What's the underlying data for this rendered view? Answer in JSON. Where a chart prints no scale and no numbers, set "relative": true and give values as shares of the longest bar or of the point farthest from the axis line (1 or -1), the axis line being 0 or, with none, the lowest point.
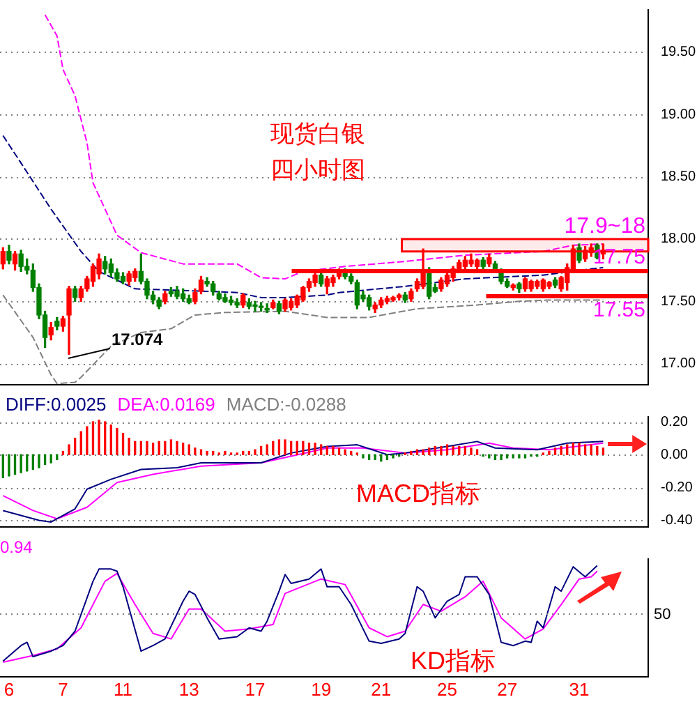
{
  "chart_data": [
    {
      "type": "candlestick",
      "categories": [
        null,
        "6",
        null,
        null,
        null,
        null,
        null,
        null,
        null,
        null,
        "7",
        null,
        null,
        null,
        null,
        null,
        null,
        null,
        null,
        null,
        "11",
        null,
        null,
        null,
        null,
        null,
        null,
        null,
        null,
        null,
        null,
        "13",
        null,
        null,
        null,
        null,
        null,
        null,
        null,
        null,
        null,
        null,
        "17",
        null,
        null,
        null,
        null,
        null,
        null,
        null,
        null,
        null,
        null,
        "19",
        null,
        null,
        null,
        null,
        null,
        null,
        null,
        null,
        null,
        "21",
        null,
        null,
        null,
        null,
        null,
        null,
        null,
        null,
        null,
        null,
        "25",
        null,
        null,
        null,
        null,
        null,
        null,
        null,
        null,
        null,
        "27",
        null,
        null,
        null,
        null,
        null,
        null,
        null,
        null,
        null,
        null,
        null,
        "31",
        null,
        null,
        null,
        null,
        null,
        null,
        null,
        null,
        null,
        null,
        null
      ],
      "ohlc": [
        [
          17.8,
          17.93,
          17.76,
          17.9
        ],
        [
          17.9,
          17.95,
          17.8,
          17.83
        ],
        [
          17.8,
          17.9,
          17.75,
          17.88
        ],
        [
          17.88,
          17.91,
          17.74,
          17.78
        ],
        [
          17.78,
          17.84,
          17.72,
          17.75
        ],
        [
          17.75,
          17.8,
          17.58,
          17.61
        ],
        [
          17.61,
          17.64,
          17.36,
          17.39
        ],
        [
          17.39,
          17.42,
          17.13,
          17.21
        ],
        [
          17.23,
          17.33,
          17.19,
          17.29
        ],
        [
          17.34,
          17.37,
          17.27,
          17.3
        ],
        [
          17.3,
          17.38,
          17.26,
          17.36
        ],
        [
          17.39,
          17.62,
          17.074,
          17.6
        ],
        [
          17.6,
          17.62,
          17.5,
          17.53
        ],
        [
          17.53,
          17.62,
          17.5,
          17.6
        ],
        [
          17.6,
          17.7,
          17.58,
          17.68
        ],
        [
          17.66,
          17.8,
          17.62,
          17.78
        ],
        [
          17.72,
          17.88,
          17.68,
          17.84
        ],
        [
          17.82,
          17.86,
          17.72,
          17.76
        ],
        [
          17.8,
          17.84,
          17.7,
          17.73
        ],
        [
          17.73,
          17.76,
          17.66,
          17.68
        ],
        [
          17.7,
          17.73,
          17.64,
          17.66
        ],
        [
          17.66,
          17.74,
          17.63,
          17.72
        ],
        [
          17.69,
          17.76,
          17.66,
          17.74
        ],
        [
          17.74,
          17.88,
          17.64,
          17.66
        ],
        [
          17.66,
          17.68,
          17.52,
          17.55
        ],
        [
          17.55,
          17.58,
          17.48,
          17.51
        ],
        [
          17.51,
          17.53,
          17.44,
          17.46
        ],
        [
          17.5,
          17.58,
          17.48,
          17.56
        ],
        [
          17.58,
          17.61,
          17.54,
          17.56
        ],
        [
          17.58,
          17.62,
          17.52,
          17.54
        ],
        [
          17.56,
          17.6,
          17.5,
          17.52
        ],
        [
          17.52,
          17.55,
          17.48,
          17.49
        ],
        [
          17.5,
          17.6,
          17.48,
          17.57
        ],
        [
          17.58,
          17.7,
          17.56,
          17.67
        ],
        [
          17.66,
          17.69,
          17.62,
          17.64
        ],
        [
          17.64,
          17.66,
          17.55,
          17.58
        ],
        [
          17.56,
          17.58,
          17.51,
          17.52
        ],
        [
          17.53,
          17.56,
          17.49,
          17.5
        ],
        [
          17.51,
          17.54,
          17.47,
          17.49
        ],
        [
          17.49,
          17.52,
          17.45,
          17.47
        ],
        [
          17.47,
          17.56,
          17.45,
          17.55
        ],
        [
          17.49,
          17.52,
          17.44,
          17.46
        ],
        [
          17.47,
          17.5,
          17.42,
          17.46
        ],
        [
          17.46,
          17.49,
          17.42,
          17.45
        ],
        [
          17.44,
          17.48,
          17.41,
          17.43
        ],
        [
          17.45,
          17.51,
          17.44,
          17.49
        ],
        [
          17.48,
          17.5,
          17.4,
          17.42
        ],
        [
          17.44,
          17.52,
          17.42,
          17.51
        ],
        [
          17.45,
          17.52,
          17.43,
          17.5
        ],
        [
          17.47,
          17.55,
          17.45,
          17.54
        ],
        [
          17.51,
          17.62,
          17.5,
          17.61
        ],
        [
          17.61,
          17.68,
          17.58,
          17.66
        ],
        [
          17.65,
          17.73,
          17.62,
          17.71
        ],
        [
          17.71,
          17.73,
          17.62,
          17.64
        ],
        [
          17.62,
          17.7,
          17.56,
          17.68
        ],
        [
          17.65,
          17.71,
          17.62,
          17.69
        ],
        [
          17.7,
          17.76,
          17.68,
          17.74
        ],
        [
          17.74,
          17.76,
          17.68,
          17.7
        ],
        [
          17.7,
          17.72,
          17.64,
          17.66
        ],
        [
          17.65,
          17.67,
          17.44,
          17.47
        ],
        [
          17.55,
          17.58,
          17.5,
          17.52
        ],
        [
          17.53,
          17.55,
          17.43,
          17.46
        ],
        [
          17.44,
          17.49,
          17.41,
          17.47
        ],
        [
          17.47,
          17.53,
          17.45,
          17.51
        ],
        [
          17.5,
          17.54,
          17.48,
          17.52
        ],
        [
          17.51,
          17.54,
          17.5,
          17.53
        ],
        [
          17.53,
          17.56,
          17.51,
          17.55
        ],
        [
          17.55,
          17.57,
          17.49,
          17.51
        ],
        [
          17.52,
          17.6,
          17.5,
          17.58
        ],
        [
          17.6,
          17.68,
          17.58,
          17.66
        ],
        [
          17.62,
          17.92,
          17.6,
          17.75
        ],
        [
          17.75,
          17.77,
          17.52,
          17.54
        ],
        [
          17.61,
          17.64,
          17.57,
          17.58
        ],
        [
          17.6,
          17.69,
          17.58,
          17.67
        ],
        [
          17.64,
          17.73,
          17.62,
          17.71
        ],
        [
          17.69,
          17.78,
          17.66,
          17.76
        ],
        [
          17.76,
          17.83,
          17.74,
          17.81
        ],
        [
          17.78,
          17.86,
          17.76,
          17.83
        ],
        [
          17.8,
          17.88,
          17.78,
          17.83
        ],
        [
          17.78,
          17.84,
          17.76,
          17.83
        ],
        [
          17.83,
          17.85,
          17.76,
          17.78
        ],
        [
          17.8,
          17.88,
          17.78,
          17.85
        ],
        [
          17.8,
          17.82,
          17.73,
          17.75
        ],
        [
          17.75,
          17.76,
          17.64,
          17.66
        ],
        [
          17.66,
          17.68,
          17.61,
          17.62
        ],
        [
          17.61,
          17.64,
          17.59,
          17.63
        ],
        [
          17.64,
          17.65,
          17.57,
          17.6
        ],
        [
          17.6,
          17.69,
          17.58,
          17.68
        ],
        [
          17.6,
          17.67,
          17.58,
          17.66
        ],
        [
          17.62,
          17.67,
          17.6,
          17.66
        ],
        [
          17.6,
          17.68,
          17.58,
          17.67
        ],
        [
          17.62,
          17.66,
          17.6,
          17.65
        ],
        [
          17.67,
          17.69,
          17.61,
          17.63
        ],
        [
          17.6,
          17.7,
          17.58,
          17.69
        ],
        [
          17.65,
          17.8,
          17.59,
          17.77
        ],
        [
          17.76,
          17.95,
          17.74,
          17.92
        ],
        [
          17.93,
          17.96,
          17.81,
          17.83
        ],
        [
          17.84,
          17.94,
          17.82,
          17.91
        ],
        [
          17.89,
          17.96,
          17.86,
          17.93
        ],
        [
          17.95,
          17.96,
          17.84,
          17.85
        ],
        [
          17.88,
          17.96,
          17.84,
          17.91
        ],
        null,
        null,
        null,
        null,
        null,
        null,
        null
      ],
      "series": [
        {
          "type": "line",
          "color": "#ff00ff",
          "values": [
            null,
            null,
            null,
            null,
            null,
            null,
            null,
            19.8,
            null,
            19.63,
            19.36,
            null,
            19.15,
            null,
            18.77,
            18.45,
            null,
            18.24,
            null,
            18.03,
            null,
            null,
            null,
            17.89,
            null,
            null,
            null,
            null,
            null,
            null,
            17.8,
            null,
            null,
            null,
            null,
            null,
            null,
            null,
            null,
            17.8,
            null,
            null,
            null,
            17.69,
            null,
            null,
            null,
            17.68,
            null,
            null,
            17.74,
            null,
            null,
            null,
            null,
            null,
            null,
            17.78,
            null,
            null,
            null,
            null,
            null,
            null,
            null,
            null,
            null,
            17.82,
            null,
            null,
            null,
            null,
            null,
            null,
            null,
            null,
            null,
            17.87,
            null,
            null,
            null,
            null,
            null,
            null,
            null,
            null,
            null,
            null,
            null,
            null,
            17.9,
            null,
            null,
            null,
            null,
            17.95,
            null,
            null,
            null,
            null,
            17.96,
            null,
            null,
            null,
            null,
            null,
            null,
            null
          ]
        },
        {
          "type": "line",
          "color": "#000080",
          "values": [
            18.83,
            null,
            null,
            18.61,
            null,
            null,
            null,
            null,
            18.24,
            null,
            null,
            null,
            null,
            17.9,
            null,
            null,
            17.74,
            null,
            null,
            null,
            null,
            null,
            17.6,
            null,
            null,
            null,
            null,
            null,
            null,
            null,
            null,
            null,
            null,
            null,
            17.58,
            null,
            null,
            null,
            null,
            17.57,
            null,
            null,
            null,
            17.53,
            null,
            null,
            null,
            17.53,
            null,
            null,
            null,
            null,
            null,
            null,
            17.55,
            null,
            17.57,
            null,
            null,
            null,
            null,
            null,
            null,
            null,
            null,
            null,
            null,
            17.62,
            null,
            null,
            null,
            null,
            null,
            null,
            null,
            null,
            null,
            17.68,
            null,
            null,
            null,
            null,
            null,
            null,
            null,
            null,
            null,
            null,
            null,
            null,
            17.71,
            null,
            null,
            null,
            null,
            null,
            null,
            null,
            17.76,
            null,
            17.77,
            null,
            null,
            null,
            null,
            null,
            null,
            null
          ]
        },
        {
          "type": "line",
          "color": "#808080",
          "values": [
            17.55,
            null,
            null,
            null,
            null,
            17.21,
            null,
            null,
            16.91,
            16.84,
            null,
            null,
            16.85,
            16.89,
            null,
            null,
            null,
            null,
            17.14,
            null,
            null,
            null,
            null,
            17.25,
            null,
            null,
            null,
            null,
            17.28,
            null,
            null,
            null,
            17.39,
            null,
            null,
            null,
            null,
            17.41,
            null,
            null,
            null,
            null,
            null,
            null,
            null,
            null,
            null,
            17.42,
            null,
            null,
            null,
            null,
            null,
            null,
            17.37,
            null,
            null,
            null,
            null,
            null,
            null,
            17.37,
            null,
            null,
            null,
            null,
            null,
            null,
            null,
            17.44,
            null,
            null,
            null,
            null,
            null,
            null,
            null,
            null,
            null,
            17.47,
            null,
            null,
            null,
            null,
            null,
            null,
            17.5,
            null,
            null,
            null,
            null,
            17.51,
            null,
            null,
            null,
            null,
            null,
            null,
            null,
            null,
            17.51,
            null,
            null,
            null,
            null,
            null,
            null,
            null
          ]
        }
      ],
      "line_style": "dashed",
      "ylim": [
        16.83,
        19.84
      ],
      "yticks": [
        {
          "value": 17,
          "label": "17.00"
        },
        {
          "value": 17.5,
          "label": "17.50"
        },
        {
          "value": 18,
          "label": "18.00"
        },
        {
          "value": 18.5,
          "label": "18.50"
        },
        {
          "value": 19,
          "label": "19.00"
        },
        {
          "value": 19.5,
          "label": "19.50"
        }
      ],
      "grid": "y",
      "tick_labels": "y",
      "legend": false,
      "ref_lines": [
        {
          "axis": "y",
          "value": 17.75,
          "label": "17.75",
          "color": "#ff0000"
        },
        {
          "axis": "y",
          "value": 17.55,
          "label": "17.55",
          "color": "#ff0000"
        }
      ],
      "bands": [
        {
          "axis": "y",
          "from": 17.9,
          "to": 18,
          "label": "17.9~18",
          "color": "#ff0000"
        }
      ],
      "annotations": [
        "现货白银",
        "四小时图",
        "17.074"
      ]
    },
    {
      "type": "bar",
      "categories": [
        null,
        "6",
        null,
        null,
        null,
        null,
        null,
        null,
        null,
        null,
        "7",
        null,
        null,
        null,
        null,
        null,
        null,
        null,
        null,
        null,
        "11",
        null,
        null,
        null,
        null,
        null,
        null,
        null,
        null,
        null,
        null,
        "13",
        null,
        null,
        null,
        null,
        null,
        null,
        null,
        null,
        null,
        null,
        "17",
        null,
        null,
        null,
        null,
        null,
        null,
        null,
        null,
        null,
        null,
        "19",
        null,
        null,
        null,
        null,
        null,
        null,
        null,
        null,
        null,
        "21",
        null,
        null,
        null,
        null,
        null,
        null,
        null,
        null,
        null,
        null,
        "25",
        null,
        null,
        null,
        null,
        null,
        null,
        null,
        null,
        null,
        "27",
        null,
        null,
        null,
        null,
        null,
        null,
        null,
        null,
        null,
        null,
        null,
        "31",
        null,
        null,
        null,
        null,
        null,
        null,
        null,
        null,
        null,
        null,
        null
      ],
      "series": [
        {
          "type": "bar",
          "colors": [
            "#008000",
            "#008000",
            "#008000",
            "#008000",
            "#008000",
            "#008000",
            "#008000",
            "#008000",
            "#008000",
            "#008000",
            "#ff0000",
            "#ff0000",
            "#ff0000",
            "#ff0000",
            "#ff0000",
            "#ff0000",
            "#ff0000",
            "#ff0000",
            "#ff0000",
            "#ff0000",
            "#ff0000",
            "#ff0000",
            "#ff0000",
            "#ff0000",
            "#ff0000",
            "#ff0000",
            "#ff0000",
            "#ff0000",
            "#ff0000",
            "#ff0000",
            "#ff0000",
            "#ff0000",
            "#ff0000",
            "#ff0000",
            "#ff0000",
            "#ff0000",
            "#ff0000",
            "#ff0000",
            "#ff0000",
            "#ff0000",
            "#ff0000",
            "#ff0000",
            "#ff0000",
            "#ff0000",
            "#ff0000",
            "#ff0000",
            "#ff0000",
            "#ff0000",
            "#ff0000",
            "#ff0000",
            "#ff0000",
            "#ff0000",
            "#ff0000",
            "#ff0000",
            "#ff0000",
            "#ff0000",
            "#ff0000",
            "#ff0000",
            "#ff0000",
            "#ff0000",
            "#008000",
            "#008000",
            "#008000",
            "#008000",
            "#008000",
            "#008000",
            "#008000",
            "#ff0000",
            "#ff0000",
            "#ff0000",
            "#ff0000",
            "#ff0000",
            "#ff0000",
            "#ff0000",
            "#ff0000",
            "#ff0000",
            "#ff0000",
            "#ff0000",
            "#ff0000",
            "#ff0000",
            "#008000",
            "#008000",
            "#008000",
            "#008000",
            "#008000",
            "#008000",
            "#008000",
            "#008000",
            "#008000",
            "#008000",
            "#ff0000",
            "#ff0000",
            "#ff0000",
            "#ff0000",
            "#ff0000",
            "#ff0000",
            "#ff0000",
            "#ff0000",
            "#ff0000",
            "#ff0000",
            "#ff0000",
            null,
            null,
            null,
            null,
            null,
            null,
            null
          ],
          "values": [
            -0.14,
            -0.13,
            -0.12,
            -0.11,
            -0.1,
            -0.09,
            -0.08,
            -0.06,
            -0.05,
            -0.03,
            0.02,
            0.06,
            0.1,
            0.14,
            0.17,
            0.2,
            0.21,
            0.2,
            0.18,
            0.16,
            0.13,
            0.1,
            0.08,
            0.08,
            0.08,
            0.07,
            0.08,
            0.08,
            0.09,
            0.08,
            0.07,
            0.06,
            0.04,
            0.03,
            0.02,
            0.02,
            0.01,
            0.02,
            0.01,
            0.01,
            0.02,
            0.02,
            0.03,
            0.05,
            0.06,
            0.08,
            0.09,
            0.09,
            0.08,
            0.08,
            0.08,
            0.07,
            0.07,
            0.06,
            0.05,
            0.05,
            0.04,
            0.03,
            0.02,
            0.01,
            -0.02,
            -0.03,
            -0.03,
            -0.04,
            -0.03,
            -0.02,
            -0.01,
            0.01,
            0.02,
            0.03,
            0.03,
            0.04,
            0.05,
            0.05,
            0.06,
            0.05,
            0.05,
            0.05,
            0.04,
            0.03,
            -0.01,
            -0.02,
            -0.03,
            -0.03,
            -0.02,
            -0.02,
            -0.02,
            -0.02,
            -0.01,
            -0.01,
            0.01,
            0.02,
            0.04,
            0.05,
            0.06,
            0.07,
            0.07,
            0.06,
            0.06,
            0.05,
            0.04,
            null,
            null,
            null,
            null,
            null,
            null,
            null
          ]
        },
        {
          "type": "line",
          "color": "#000080",
          "values": [
            -0.34,
            null,
            null,
            null,
            null,
            null,
            -0.4,
            null,
            -0.41,
            null,
            null,
            null,
            -0.33,
            null,
            -0.21,
            null,
            null,
            null,
            -0.15,
            null,
            null,
            null,
            null,
            -0.09,
            null,
            null,
            null,
            null,
            null,
            -0.08,
            null,
            null,
            null,
            -0.05,
            null,
            null,
            null,
            null,
            null,
            null,
            null,
            null,
            null,
            -0.05,
            null,
            null,
            null,
            null,
            0.01,
            null,
            null,
            null,
            null,
            null,
            0.05,
            null,
            null,
            null,
            null,
            0.06,
            null,
            null,
            null,
            null,
            0.0,
            null,
            null,
            0.01,
            null,
            null,
            null,
            null,
            null,
            null,
            0.05,
            null,
            null,
            null,
            null,
            0.08,
            null,
            null,
            0.04,
            null,
            null,
            null,
            null,
            null,
            null,
            0.03,
            null,
            null,
            null,
            null,
            0.07,
            null,
            null,
            null,
            null,
            null,
            0.08,
            null,
            null,
            null,
            null,
            null,
            null,
            null
          ]
        },
        {
          "type": "line",
          "color": "#ff00ff",
          "values": [
            -0.25,
            null,
            null,
            null,
            null,
            -0.34,
            null,
            null,
            null,
            -0.39,
            null,
            null,
            null,
            null,
            -0.32,
            null,
            null,
            null,
            null,
            -0.17,
            null,
            null,
            null,
            null,
            null,
            -0.12,
            null,
            null,
            null,
            null,
            null,
            null,
            null,
            -0.07,
            null,
            null,
            null,
            null,
            null,
            null,
            null,
            null,
            null,
            -0.05,
            null,
            null,
            null,
            null,
            -0.01,
            null,
            null,
            null,
            null,
            null,
            0.04,
            null,
            null,
            null,
            null,
            null,
            0.04,
            null,
            null,
            null,
            null,
            null,
            null,
            0.01,
            null,
            null,
            null,
            null,
            null,
            null,
            0.03,
            null,
            null,
            null,
            null,
            null,
            null,
            0.07,
            null,
            null,
            null,
            0.04,
            null,
            null,
            null,
            null,
            null,
            0.03,
            null,
            null,
            null,
            null,
            null,
            null,
            null,
            null,
            0.07,
            null,
            null,
            null,
            null,
            null,
            null,
            null
          ]
        }
      ],
      "ylim": [
        -0.44,
        0.23
      ],
      "yticks": [
        {
          "value": 0.2,
          "label": "0.20"
        },
        {
          "value": 0,
          "label": "0.00"
        },
        {
          "value": -0.2,
          "label": "-0.20"
        },
        {
          "value": -0.4,
          "label": "-0.40"
        }
      ],
      "grid": "y",
      "tick_labels": "y",
      "legend": false,
      "annotations": [
        "DIFF:0.0025",
        "DEA:0.0169",
        "MACD:-0.0288",
        "MACD指标"
      ]
    },
    {
      "type": "line",
      "categories": [
        null,
        "6",
        null,
        null,
        null,
        null,
        null,
        null,
        null,
        null,
        "7",
        null,
        null,
        null,
        null,
        null,
        null,
        null,
        null,
        null,
        "11",
        null,
        null,
        null,
        null,
        null,
        null,
        null,
        null,
        null,
        null,
        "13",
        null,
        null,
        null,
        null,
        null,
        null,
        null,
        null,
        null,
        null,
        "17",
        null,
        null,
        null,
        null,
        null,
        null,
        null,
        null,
        null,
        null,
        "19",
        null,
        null,
        null,
        null,
        null,
        null,
        null,
        null,
        null,
        "21",
        null,
        null,
        null,
        null,
        null,
        null,
        null,
        null,
        null,
        null,
        "25",
        null,
        null,
        null,
        null,
        null,
        null,
        null,
        null,
        null,
        "27",
        null,
        null,
        null,
        null,
        null,
        null,
        null,
        null,
        null,
        null,
        null,
        "31",
        null,
        null,
        null,
        null,
        null,
        null,
        null,
        null,
        null,
        null,
        null
      ],
      "series": [
        {
          "color": "#000080",
          "values": [
            0.14,
            null,
            null,
            0.28,
            0.31,
            0.18,
            null,
            null,
            0.23,
            null,
            0.28,
            null,
            0.41,
            0.56,
            null,
            0.86,
            0.97,
            null,
            0.97,
            0.95,
            0.81,
            null,
            null,
            0.23,
            null,
            0.28,
            null,
            0.34,
            null,
            null,
            0.68,
            0.77,
            0.74,
            null,
            0.53,
            null,
            0.34,
            null,
            null,
            0.36,
            null,
            0.44,
            null,
            0.41,
            0.5,
            null,
            0.77,
            0.92,
            0.84,
            null,
            null,
            0.88,
            null,
            0.97,
            0.81,
            null,
            0.81,
            null,
            0.65,
            null,
            null,
            0.32,
            null,
            0.3,
            null,
            null,
            0.34,
            0.39,
            null,
            0.81,
            0.77,
            null,
            0.53,
            null,
            0.68,
            null,
            0.74,
            0.9,
            null,
            0.9,
            null,
            0.74,
            null,
            0.31,
            null,
            0.28,
            null,
            0.32,
            0.31,
            0.5,
            0.44,
            null,
            0.81,
            0.77,
            null,
            0.99,
            null,
            0.9,
            null,
            1,
            null,
            null,
            null,
            null,
            null,
            null,
            null,
            null
          ]
        },
        {
          "color": "#ff00ff",
          "values": [
            0.13,
            null,
            null,
            null,
            null,
            0.19,
            null,
            null,
            null,
            0.25,
            null,
            null,
            null,
            0.44,
            null,
            null,
            null,
            0.86,
            null,
            0.93,
            null,
            null,
            0.65,
            null,
            null,
            0.39,
            null,
            null,
            0.34,
            null,
            null,
            0.61,
            null,
            0.61,
            null,
            null,
            null,
            0.41,
            null,
            null,
            null,
            0.43,
            null,
            null,
            null,
            0.47,
            null,
            0.75,
            null,
            null,
            null,
            null,
            null,
            0.88,
            null,
            null,
            null,
            0.83,
            null,
            null,
            null,
            0.44,
            null,
            null,
            0.36,
            null,
            null,
            0.41,
            null,
            null,
            0.65,
            null,
            null,
            0.59,
            null,
            null,
            null,
            0.72,
            null,
            null,
            0.86,
            null,
            null,
            0.53,
            null,
            null,
            null,
            0.34,
            null,
            null,
            0.43,
            null,
            null,
            0.65,
            null,
            null,
            0.88,
            null,
            0.9,
            0.95,
            null,
            null,
            null,
            null,
            null,
            null,
            null,
            null
          ]
        }
      ],
      "relative": true,
      "legend": false,
      "ref_lines": [
        {
          "axis": "y",
          "value": 0.57,
          "color": "#808080",
          "line_style": "dotted"
        }
      ],
      "annotations": [
        "0.94",
        "KD指标",
        "50"
      ]
    }
  ]
}
